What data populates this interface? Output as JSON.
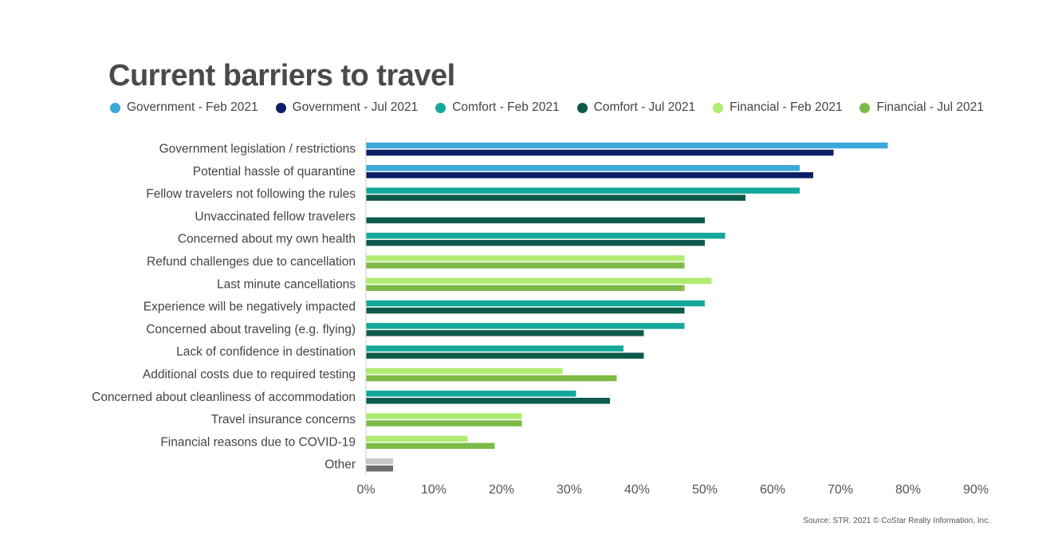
{
  "title": "Current barriers to travel",
  "source": "Source: STR. 2021 © CoStar Realty Information, Inc.",
  "colors": {
    "gov_feb": "#3aa8d8",
    "gov_jul": "#0c1f66",
    "com_feb": "#13a89a",
    "com_jul": "#0d5a4c",
    "fin_feb": "#b0ec72",
    "fin_jul": "#7dba48",
    "other_feb": "#c8c8c8",
    "other_jul": "#6e6e6e",
    "axis": "#cccccc"
  },
  "legend": [
    {
      "label": "Government - Feb 2021",
      "color": "#3aa8d8"
    },
    {
      "label": "Government - Jul 2021",
      "color": "#0c1f66"
    },
    {
      "label": "Comfort - Feb 2021",
      "color": "#13a89a"
    },
    {
      "label": "Comfort - Jul 2021",
      "color": "#0d5a4c"
    },
    {
      "label": "Financial - Feb 2021",
      "color": "#b0ec72"
    },
    {
      "label": "Financial - Jul 2021",
      "color": "#7dba48"
    }
  ],
  "chart_data": {
    "type": "bar",
    "orientation": "horizontal",
    "title": "Current barriers to travel",
    "xlim": [
      0,
      90
    ],
    "x_ticks": [
      "0%",
      "10%",
      "20%",
      "30%",
      "40%",
      "50%",
      "60%",
      "70%",
      "80%",
      "90%"
    ],
    "grid": false,
    "legend_position": "top",
    "categories": [
      {
        "label": "Government legislation / restrictions",
        "group": "gov",
        "feb": 77,
        "jul": 69
      },
      {
        "label": "Potential hassle of quarantine",
        "group": "gov",
        "feb": 64,
        "jul": 66
      },
      {
        "label": "Fellow travelers not following the rules",
        "group": "com",
        "feb": 64,
        "jul": 56
      },
      {
        "label": "Unvaccinated fellow travelers",
        "group": "com",
        "feb": null,
        "jul": 50
      },
      {
        "label": "Concerned about my own health",
        "group": "com",
        "feb": 53,
        "jul": 50
      },
      {
        "label": "Refund challenges due to cancellation",
        "group": "fin",
        "feb": 47,
        "jul": 47
      },
      {
        "label": "Last minute cancellations",
        "group": "fin",
        "feb": 51,
        "jul": 47
      },
      {
        "label": "Experience will be negatively impacted",
        "group": "com",
        "feb": 50,
        "jul": 47
      },
      {
        "label": "Concerned about traveling (e.g. flying)",
        "group": "com",
        "feb": 47,
        "jul": 41
      },
      {
        "label": "Lack of confidence in destination",
        "group": "com",
        "feb": 38,
        "jul": 41
      },
      {
        "label": "Additional costs due to required testing",
        "group": "fin",
        "feb": 29,
        "jul": 37
      },
      {
        "label": "Concerned about cleanliness of accommodation",
        "group": "com",
        "feb": 31,
        "jul": 36
      },
      {
        "label": "Travel insurance concerns",
        "group": "fin",
        "feb": 23,
        "jul": 23
      },
      {
        "label": "Financial reasons due to COVID-19",
        "group": "fin",
        "feb": 15,
        "jul": 19
      },
      {
        "label": "Other",
        "group": "other",
        "feb": 4,
        "jul": 4
      }
    ]
  }
}
